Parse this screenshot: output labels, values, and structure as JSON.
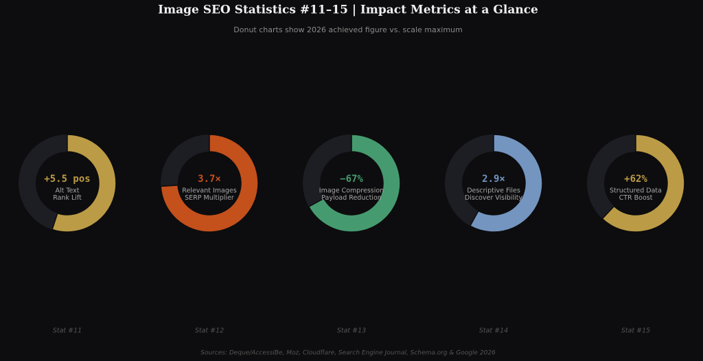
{
  "chart_data": {
    "type": "donut",
    "title": "Image SEO Statistics #11–15  |  Impact Metrics at a Glance",
    "subtitle": "Donut charts show 2026 achieved figure vs. scale maximum",
    "source": "Sources: Deque/AccessiBe, Moz, Cloudflare, Search Engine Journal, Schema.org & Google 2026",
    "items": [
      {
        "value": 5.5,
        "value_label": "+5.5 pos",
        "range": [
          0,
          10
        ],
        "label": [
          "Alt Text",
          "Rank Lift"
        ],
        "caption": "Stat #11",
        "color": "#bb9b45"
      },
      {
        "value": 3.7,
        "value_label": "3.7×",
        "range": [
          0,
          5
        ],
        "label": [
          "Relevant Images",
          "SERP Multiplier"
        ],
        "caption": "Stat #12",
        "color": "#c4501b"
      },
      {
        "value": -67,
        "value_label": "−67%",
        "range": [
          0,
          -100
        ],
        "label": [
          "Image Compression",
          "Payload Reduction"
        ],
        "caption": "Stat #13",
        "color": "#459b6f"
      },
      {
        "value": 2.9,
        "value_label": "2.9×",
        "range": [
          0,
          5
        ],
        "label": [
          "Descriptive Files",
          "Discover Visibility"
        ],
        "caption": "Stat #14",
        "color": "#7395c0"
      },
      {
        "value": 62,
        "value_label": "+62%",
        "range": [
          0,
          100
        ],
        "label": [
          "Structured Data",
          "CTR Boost"
        ],
        "caption": "Stat #15",
        "color": "#bb9b45"
      }
    ]
  }
}
